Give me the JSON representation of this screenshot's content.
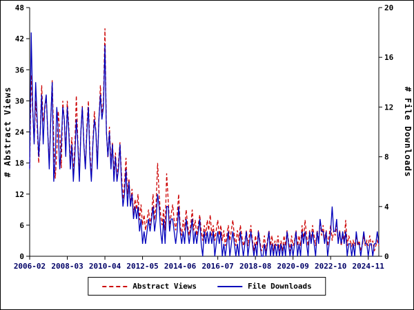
{
  "chart_data": {
    "type": "line",
    "title": "",
    "ylabel_left": "# Abstract Views",
    "ylabel_right": "# File Downloads",
    "ylim_left": [
      0,
      48
    ],
    "ylim_right": [
      0,
      20
    ],
    "yticks_left": [
      0,
      6,
      12,
      18,
      24,
      30,
      36,
      42,
      48
    ],
    "yticks_right": [
      0,
      4,
      8,
      12,
      16,
      20
    ],
    "x_tick_labels": [
      "2006-02",
      "2008-03",
      "2010-04",
      "2012-05",
      "2014-06",
      "2016-07",
      "2018-08",
      "2020-09",
      "2022-10",
      "2024-11"
    ],
    "x_tick_indices": [
      0,
      25,
      50,
      75,
      100,
      125,
      150,
      175,
      200,
      225
    ],
    "n_points": 233,
    "grid": false,
    "legend_position": "bottom-center",
    "axis_color": "#000000",
    "x_tick_label_color": "#000066",
    "series": [
      {
        "name": "Abstract Views",
        "axis": "left",
        "color": "#cc0000",
        "style": "dashed",
        "values": [
          17,
          35,
          28,
          22,
          30,
          25,
          18,
          24,
          33,
          26,
          28,
          31,
          24,
          18,
          26,
          34,
          22,
          15,
          20,
          28,
          24,
          17,
          30,
          26,
          20,
          30,
          25,
          18,
          23,
          16,
          21,
          31,
          22,
          16,
          24,
          29,
          22,
          17,
          25,
          30,
          21,
          15,
          22,
          28,
          24,
          18,
          26,
          33,
          27,
          30,
          44,
          24,
          19,
          25,
          18,
          22,
          16,
          20,
          15,
          18,
          22,
          16,
          11,
          14,
          19,
          12,
          15,
          10,
          13,
          8,
          11,
          9,
          12,
          7,
          10,
          6,
          8,
          5,
          7,
          9,
          6,
          8,
          12,
          7,
          10,
          18,
          12,
          8,
          6,
          9,
          5,
          16,
          11,
          6,
          8,
          10,
          7,
          5,
          8,
          12,
          6,
          4,
          7,
          5,
          9,
          6,
          4,
          6,
          9,
          5,
          7,
          4,
          6,
          8,
          5,
          3,
          6,
          4,
          7,
          5,
          8,
          4,
          6,
          3,
          5,
          7,
          4,
          6,
          3,
          5,
          2,
          4,
          6,
          3,
          5,
          7,
          4,
          2,
          5,
          3,
          6,
          4,
          2,
          3,
          5,
          2,
          4,
          6,
          3,
          1,
          4,
          2,
          5,
          3,
          1,
          2,
          4,
          1,
          3,
          5,
          2,
          4,
          1,
          3,
          2,
          4,
          1,
          3,
          1,
          4,
          2,
          5,
          3,
          1,
          4,
          2,
          3,
          5,
          2,
          4,
          2,
          6,
          3,
          7,
          4,
          2,
          5,
          3,
          6,
          4,
          2,
          5,
          3,
          7,
          4,
          6,
          3,
          5,
          2,
          4,
          6,
          3,
          5,
          4,
          6,
          3,
          5,
          2,
          4,
          3,
          7,
          2,
          4,
          3,
          2,
          3,
          2,
          4,
          2,
          3,
          1,
          2,
          4,
          2,
          3,
          2,
          4,
          2,
          3,
          1,
          2,
          3,
          2
        ]
      },
      {
        "name": "File Downloads",
        "axis": "right",
        "color": "#0000bb",
        "style": "solid",
        "values": [
          7,
          18,
          12,
          9,
          14,
          11,
          8,
          10,
          13,
          9,
          12,
          13,
          10,
          7,
          11,
          14,
          6,
          8,
          12,
          10,
          7,
          9,
          12,
          11,
          8,
          12,
          10,
          7,
          9,
          6,
          8,
          11,
          9,
          6,
          10,
          12,
          9,
          7,
          10,
          12,
          8,
          6,
          9,
          11,
          10,
          7,
          11,
          13,
          11,
          12,
          17,
          10,
          8,
          10,
          7,
          9,
          6,
          8,
          6,
          7,
          9,
          6,
          4,
          5,
          7,
          4,
          6,
          4,
          5,
          3,
          4,
          3,
          4,
          2,
          3,
          1,
          2,
          1,
          2,
          3,
          2,
          3,
          4,
          2,
          3,
          5,
          4,
          2,
          1,
          3,
          1,
          4,
          4,
          2,
          3,
          3,
          2,
          1,
          2,
          4,
          2,
          1,
          2,
          1,
          3,
          2,
          1,
          2,
          3,
          1,
          2,
          1,
          2,
          3,
          1,
          0,
          2,
          1,
          2,
          1,
          2,
          1,
          2,
          0,
          1,
          2,
          1,
          2,
          0,
          1,
          0,
          1,
          2,
          0,
          1,
          2,
          1,
          0,
          1,
          0,
          2,
          1,
          0,
          1,
          2,
          0,
          1,
          2,
          1,
          0,
          1,
          0,
          2,
          1,
          0,
          0,
          1,
          0,
          1,
          2,
          0,
          1,
          0,
          1,
          0,
          1,
          0,
          1,
          0,
          1,
          0,
          2,
          1,
          0,
          1,
          0,
          1,
          2,
          0,
          1,
          0,
          2,
          1,
          2,
          1,
          0,
          2,
          1,
          2,
          1,
          0,
          2,
          1,
          3,
          2,
          2,
          1,
          2,
          0,
          1,
          2,
          4,
          2,
          2,
          3,
          1,
          2,
          1,
          2,
          1,
          2,
          0,
          1,
          1,
          0,
          1,
          0,
          2,
          1,
          1,
          0,
          1,
          2,
          1,
          1,
          0,
          1,
          1,
          0,
          1,
          1,
          2,
          1
        ]
      }
    ]
  },
  "legend": {
    "abstract_views_label": "Abstract Views",
    "file_downloads_label": "File Downloads"
  }
}
